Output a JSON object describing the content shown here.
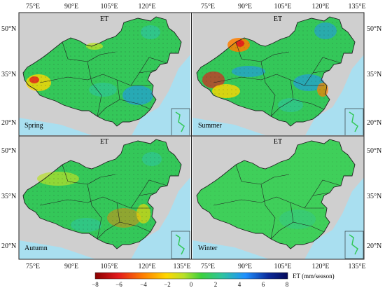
{
  "figure": {
    "variable": "ET",
    "top_lon_ticks": [
      "75°E",
      "90°E",
      "105°E",
      "120°E",
      "135°E"
    ],
    "bottom_lon_ticks": [
      "75°E",
      "90°E",
      "105°E",
      "120°E",
      "135°E"
    ],
    "left_lat_ticks": [
      "50°N",
      "35°N",
      "20°N"
    ],
    "right_lat_ticks": [
      "50°N",
      "35°N",
      "20°N"
    ],
    "panels": [
      {
        "season": "Spring",
        "title": "ET"
      },
      {
        "season": "Summer",
        "title": "ET"
      },
      {
        "season": "Autumn",
        "title": "ET"
      },
      {
        "season": "Winter",
        "title": "ET"
      }
    ]
  },
  "colorbar": {
    "label": "ET (mm/season)",
    "ticks": [
      "−8",
      "−6",
      "−4",
      "−2",
      "0",
      "2",
      "4",
      "6",
      "8"
    ],
    "range": [
      -8,
      8
    ],
    "colors": [
      "#8b0000",
      "#e31a1c",
      "#ff7f00",
      "#ffd700",
      "#b8e02a",
      "#3cd13c",
      "#2fc4a0",
      "#1e90ff",
      "#0b2a9a",
      "#050a5a"
    ]
  },
  "colors": {
    "land_outside": "#cfcfcf",
    "sea": "#a9dff0",
    "china_base": "#34c759",
    "boundary": "#222222"
  }
}
